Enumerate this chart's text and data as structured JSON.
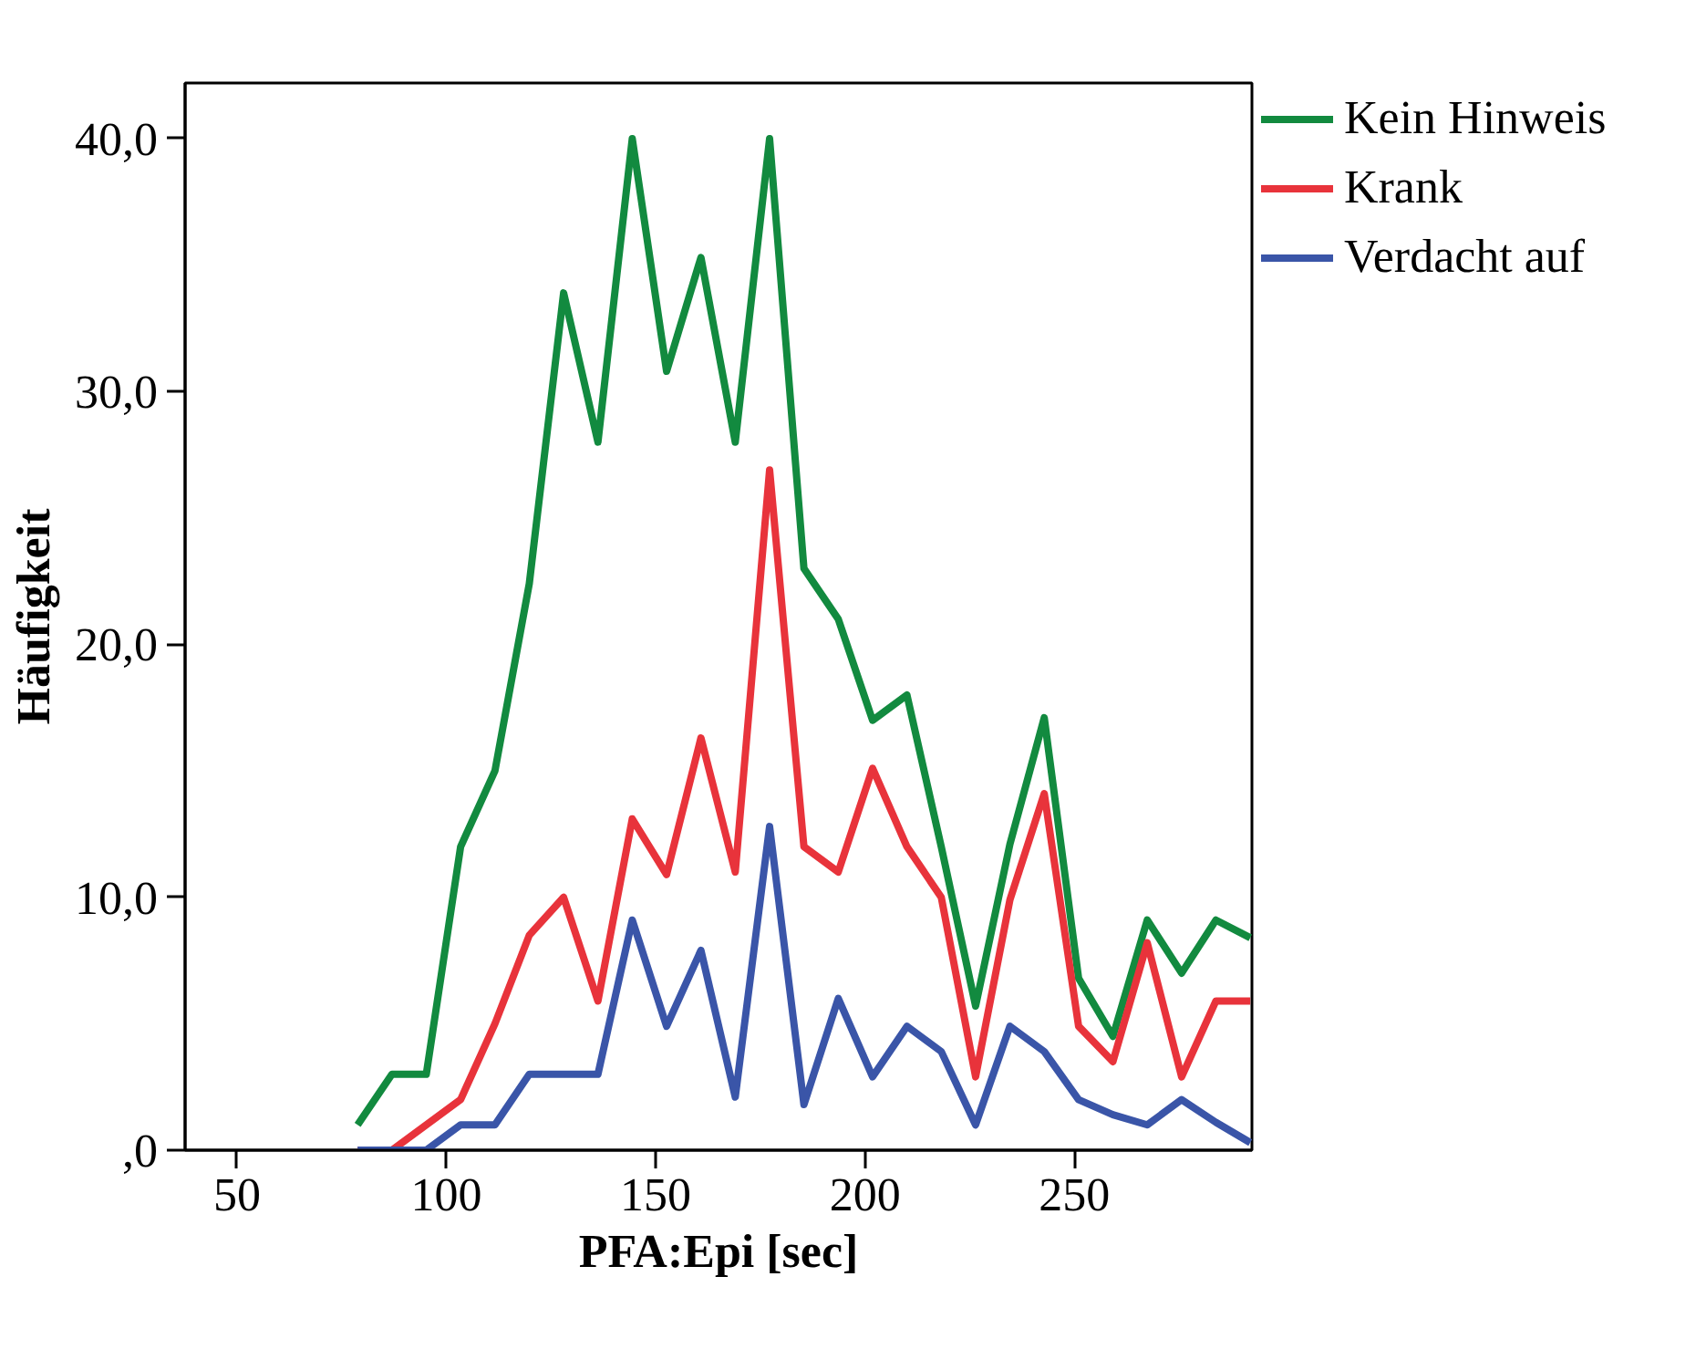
{
  "chart_data": {
    "type": "line",
    "xlabel": "PFA:Epi [sec]",
    "ylabel": "Häufigkeit",
    "x": [
      78.8,
      87.0,
      95.2,
      103.4,
      111.6,
      119.8,
      128.0,
      136.2,
      144.4,
      152.6,
      160.8,
      169.0,
      177.2,
      185.4,
      193.6,
      201.8,
      210.0,
      218.2,
      226.4,
      234.6,
      242.8,
      251.0,
      259.2,
      267.4,
      275.6,
      283.8,
      292.0
    ],
    "series": [
      {
        "name": "Kein Hinweis",
        "color": "#128a3f",
        "values": [
          1.0,
          3.0,
          3.0,
          12.0,
          15.0,
          22.4,
          33.9,
          28.0,
          40.0,
          30.8,
          35.3,
          28.0,
          40.0,
          23.0,
          21.0,
          17.0,
          18.0,
          12.0,
          5.7,
          12.1,
          17.1,
          6.8,
          4.5,
          9.1,
          7.0,
          9.1,
          8.4
        ]
      },
      {
        "name": "Krank",
        "color": "#e8333b",
        "values": [
          0.0,
          0.0,
          1.0,
          2.0,
          5.0,
          8.5,
          10.0,
          5.9,
          13.1,
          10.9,
          16.3,
          11.0,
          26.9,
          12.0,
          11.0,
          15.1,
          12.0,
          10.0,
          2.9,
          9.9,
          14.1,
          4.9,
          3.5,
          8.2,
          2.9,
          5.9,
          5.9
        ]
      },
      {
        "name": "Verdacht auf",
        "color": "#3a55a8",
        "values": [
          0.0,
          0.0,
          0.0,
          1.0,
          1.0,
          3.0,
          3.0,
          3.0,
          9.1,
          4.9,
          7.9,
          2.1,
          12.8,
          1.8,
          6.0,
          2.9,
          4.9,
          3.9,
          1.0,
          4.9,
          3.9,
          2.0,
          1.4,
          1.0,
          2.0,
          1.1,
          0.3
        ]
      }
    ],
    "xlim": [
      37.6,
      292.4
    ],
    "ylim": [
      0,
      42.2
    ],
    "xticks": [
      50,
      100,
      150,
      200,
      250
    ],
    "yticks": [
      {
        "value": 0,
        "label": ",0"
      },
      {
        "value": 10,
        "label": "10,0"
      },
      {
        "value": 20,
        "label": "20,0"
      },
      {
        "value": 30,
        "label": "30,0"
      },
      {
        "value": 40,
        "label": "40,0"
      }
    ],
    "grid": false,
    "legend": "right",
    "marker": "none",
    "line_style": "solid"
  }
}
